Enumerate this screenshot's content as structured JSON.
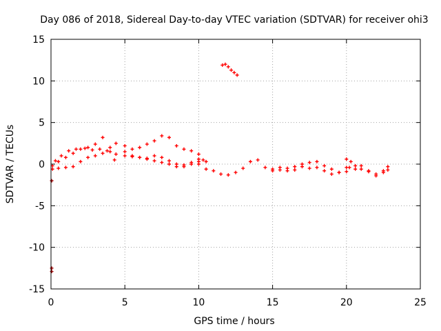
{
  "chart_data": {
    "type": "scatter",
    "title": "Day 086 of 2018, Sidereal Day-to-day VTEC variation (SDTVAR) for receiver ohi3",
    "xlabel": "GPS time / hours",
    "ylabel": "SDTVAR / TECUs",
    "xlim": [
      0,
      25
    ],
    "ylim": [
      -15,
      15
    ],
    "xticks": [
      0,
      5,
      10,
      15,
      20,
      25
    ],
    "yticks": [
      -15,
      -10,
      -5,
      0,
      5,
      10,
      15
    ],
    "xtick_labels": [
      "0",
      "5",
      "10",
      "15",
      "20",
      "25"
    ],
    "ytick_labels": [
      "-15",
      "-10",
      "-5",
      "0",
      "5",
      "10",
      "15"
    ],
    "grid": true,
    "marker": "plus",
    "colors": {
      "series": "#ff0000",
      "outlier": "#a00000"
    },
    "series": [
      {
        "name": "sdtvar-main-a",
        "color": "#ff0000",
        "x": [
          0.1,
          0.5,
          1.0,
          1.5,
          2.0,
          2.5,
          3.0,
          3.5,
          4.0,
          4.3
        ],
        "y": [
          -0.2,
          0.3,
          0.8,
          1.3,
          1.8,
          2.0,
          2.4,
          3.2,
          2.0,
          0.5
        ]
      },
      {
        "name": "sdtvar-main-b",
        "color": "#ff0000",
        "x": [
          0.1,
          0.5,
          1.0,
          1.5,
          2.0,
          2.5,
          3.0,
          3.5,
          4.0
        ],
        "y": [
          -0.6,
          -0.5,
          -0.4,
          -0.3,
          0.3,
          0.8,
          1.0,
          1.3,
          1.5
        ]
      },
      {
        "name": "sdtvar-main-c",
        "color": "#ff0000",
        "x": [
          0.3,
          0.7,
          1.2,
          1.7,
          2.3,
          2.8,
          3.3,
          3.8
        ],
        "y": [
          0.4,
          1.0,
          1.6,
          1.8,
          1.9,
          1.7,
          1.8,
          1.6
        ]
      },
      {
        "name": "sdtvar-main-d",
        "color": "#ff0000",
        "x": [
          4.4,
          5.0,
          5.5,
          6.0,
          6.5,
          7.0,
          7.5,
          8.0,
          8.5,
          9.0,
          9.5,
          10.0,
          10.3
        ],
        "y": [
          2.5,
          2.2,
          1.8,
          2.0,
          2.4,
          2.8,
          3.4,
          3.2,
          2.2,
          1.8,
          1.6,
          1.2,
          0.5
        ]
      },
      {
        "name": "sdtvar-main-e",
        "color": "#ff0000",
        "x": [
          4.4,
          5.0,
          5.5,
          6.0,
          6.5,
          7.0,
          7.5,
          8.0,
          8.5,
          9.0,
          9.5,
          10.0
        ],
        "y": [
          1.2,
          1.0,
          0.9,
          0.8,
          0.6,
          0.4,
          0.2,
          0.0,
          -0.3,
          -0.3,
          0.0,
          0.3
        ]
      },
      {
        "name": "sdtvar-main-f",
        "color": "#ff0000",
        "x": [
          5.0,
          5.5,
          6.0,
          6.5,
          7.0,
          7.5,
          8.0,
          8.5,
          9.0,
          9.5,
          10.0,
          10.5
        ],
        "y": [
          1.5,
          1.0,
          0.8,
          0.7,
          1.0,
          0.8,
          0.4,
          0.0,
          -0.1,
          0.2,
          0.6,
          0.3
        ]
      },
      {
        "name": "sdtvar-main-g",
        "color": "#ff0000",
        "x": [
          10.0,
          10.5,
          11.0,
          11.5,
          12.0,
          12.5,
          13.0,
          13.5,
          14.0,
          14.5,
          15.0,
          15.5,
          16.0,
          16.5,
          17.0,
          17.5,
          18.0,
          18.5,
          19.0,
          19.5,
          20.0
        ],
        "y": [
          0.0,
          -0.6,
          -0.8,
          -1.2,
          -1.3,
          -1.0,
          -0.5,
          0.3,
          0.5,
          -0.4,
          -0.6,
          -0.7,
          -0.5,
          -0.7,
          -0.3,
          0.2,
          0.3,
          -0.2,
          -0.6,
          -1.0,
          -0.9
        ]
      },
      {
        "name": "sdtvar-main-h",
        "color": "#ff0000",
        "x": [
          15.0,
          15.5,
          16.0,
          16.5,
          17.0,
          17.5,
          18.0,
          18.5,
          19.0,
          19.5,
          20.0
        ],
        "y": [
          -0.8,
          -0.4,
          -0.8,
          -0.3,
          0.0,
          -0.5,
          -0.4,
          -0.8,
          -1.2,
          -1.0,
          -0.4
        ]
      },
      {
        "name": "sdtvar-main-i",
        "color": "#ff0000",
        "x": [
          20.0,
          20.3,
          20.6,
          21.0,
          21.5,
          22.0,
          22.5,
          22.8
        ],
        "y": [
          0.6,
          0.3,
          -0.2,
          -0.6,
          -0.8,
          -1.2,
          -1.0,
          -0.3
        ]
      },
      {
        "name": "sdtvar-main-j",
        "color": "#ff0000",
        "x": [
          20.2,
          20.6,
          21.0,
          21.5,
          22.0,
          22.5,
          22.8
        ],
        "y": [
          -0.4,
          -0.6,
          -0.2,
          -0.9,
          -1.4,
          -0.8,
          -0.7
        ]
      },
      {
        "name": "sdtvar-isolated-arc",
        "color": "#ff0000",
        "x": [
          11.6,
          11.8,
          12.0,
          12.2,
          12.4,
          12.6
        ],
        "y": [
          11.9,
          12.0,
          11.7,
          11.3,
          11.0,
          10.7
        ]
      },
      {
        "name": "sdtvar-outliers",
        "color": "#a00000",
        "x": [
          0.05,
          0.05,
          0.05
        ],
        "y": [
          -2.0,
          -12.5,
          -12.9
        ]
      }
    ]
  }
}
